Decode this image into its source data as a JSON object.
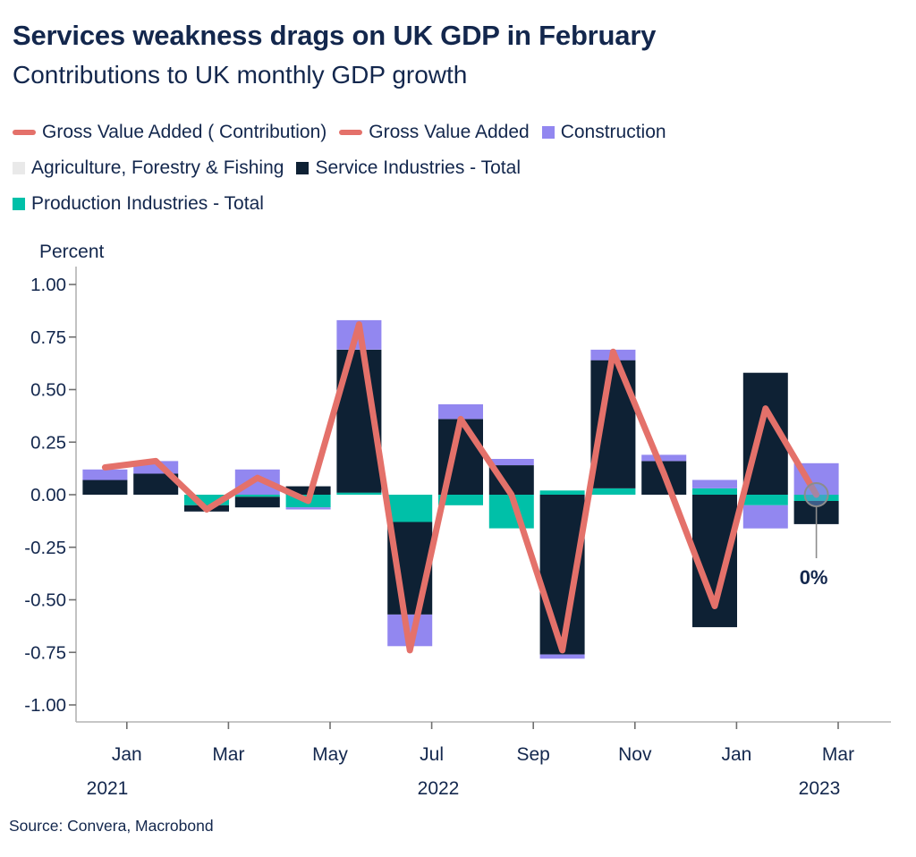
{
  "header": {
    "title": "Services weakness drags on UK GDP in February",
    "subtitle": "Contributions to UK monthly GDP growth"
  },
  "legend": {
    "rows": [
      [
        {
          "id": "gva-contribution",
          "label": "Gross Value Added ( Contribution)",
          "swatch": "line",
          "color": "#e4716a"
        },
        {
          "id": "gva",
          "label": "Gross Value Added",
          "swatch": "line",
          "color": "#e4716a"
        },
        {
          "id": "construction",
          "label": "Construction",
          "swatch": "square",
          "color": "#9287f0"
        }
      ],
      [
        {
          "id": "agriculture",
          "label": "Agriculture, Forestry & Fishing",
          "swatch": "square",
          "color": "#e9e9e9"
        },
        {
          "id": "services",
          "label": "Service Industries - Total",
          "swatch": "square",
          "color": "#0e2134"
        }
      ],
      [
        {
          "id": "production",
          "label": "Production Industries - Total",
          "swatch": "square",
          "color": "#00c0a8"
        }
      ]
    ]
  },
  "source": "Source: Convera, Macrobond",
  "chart_data": {
    "type": "bar",
    "subtype": "stacked-bars-with-line",
    "title": "Services weakness drags on UK GDP in February",
    "subtitle": "Contributions to UK monthly GDP growth",
    "ylabel": "Percent",
    "xlabel": "",
    "grid": false,
    "legend_position": "top",
    "ylim": [
      -1.08,
      1.08
    ],
    "y_ticks": [
      "1.00",
      "0.75",
      "0.50",
      "0.25",
      "0.00",
      "-0.25",
      "-0.50",
      "-0.75",
      "-1.00"
    ],
    "categories": [
      "Dec 2021",
      "Jan 2022",
      "Feb 2022",
      "Mar 2022",
      "Apr 2022",
      "May 2022",
      "Jun 2022",
      "Jul 2022",
      "Aug 2022",
      "Sep 2022",
      "Oct 2022",
      "Nov 2022",
      "Dec 2022",
      "Jan 2023",
      "Feb 2023"
    ],
    "x_tick_labels": [
      "Jan",
      "Mar",
      "May",
      "Jul",
      "Sep",
      "Nov",
      "Jan",
      "Mar"
    ],
    "x_year_labels": [
      "2021",
      "2022",
      "2023"
    ],
    "bar_series": [
      {
        "id": "production",
        "name": "Production Industries - Total",
        "color": "#00c0a8",
        "values": [
          0.0,
          0.0,
          -0.05,
          -0.01,
          -0.06,
          0.01,
          -0.13,
          -0.05,
          -0.16,
          0.02,
          0.03,
          0.0,
          0.03,
          -0.05,
          -0.03
        ]
      },
      {
        "id": "services",
        "name": "Service Industries - Total",
        "color": "#0e2134",
        "values": [
          0.07,
          0.1,
          -0.03,
          -0.05,
          0.04,
          0.68,
          -0.44,
          0.36,
          0.14,
          -0.76,
          0.61,
          0.16,
          -0.63,
          0.58,
          -0.11
        ]
      },
      {
        "id": "construction",
        "name": "Construction",
        "color": "#9287f0",
        "values": [
          0.05,
          0.06,
          0.0,
          0.12,
          -0.01,
          0.14,
          -0.15,
          0.07,
          0.03,
          -0.02,
          0.05,
          0.03,
          0.04,
          -0.11,
          0.15
        ]
      },
      {
        "id": "agriculture",
        "name": "Agriculture, Forestry & Fishing",
        "color": "#e9e9e9",
        "values": [
          0.0,
          0.0,
          0.0,
          0.0,
          0.0,
          0.0,
          0.0,
          0.0,
          0.0,
          0.0,
          0.0,
          0.0,
          0.0,
          0.0,
          0.0
        ]
      }
    ],
    "line_series": {
      "id": "gva",
      "name": "Gross Value Added",
      "color": "#e4716a",
      "values": [
        0.13,
        0.16,
        -0.07,
        0.08,
        -0.03,
        0.81,
        -0.74,
        0.36,
        0.0,
        -0.74,
        0.68,
        0.1,
        -0.53,
        0.41,
        0.0
      ]
    },
    "annotation": {
      "text": "0%",
      "month": "Feb 2023",
      "value": 0
    }
  }
}
